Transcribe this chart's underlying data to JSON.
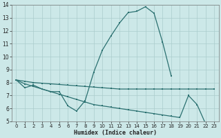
{
  "xlabel": "Humidex (Indice chaleur)",
  "bg_color": "#cce8e8",
  "grid_color": "#aacccc",
  "line_color": "#2a7070",
  "x": [
    0,
    1,
    2,
    3,
    4,
    5,
    6,
    7,
    8,
    9,
    10,
    11,
    12,
    13,
    14,
    15,
    16,
    17,
    18,
    19,
    20,
    21,
    22,
    23
  ],
  "line1": [
    8.2,
    7.6,
    7.8,
    7.5,
    7.3,
    7.3,
    6.2,
    5.8,
    6.6,
    8.8,
    10.5,
    11.6,
    12.6,
    13.4,
    13.5,
    13.85,
    13.35,
    11.1,
    8.5,
    null,
    null,
    null,
    null,
    null
  ],
  "line2": [
    8.2,
    8.1,
    8.0,
    7.95,
    7.9,
    7.85,
    7.8,
    7.75,
    7.7,
    7.65,
    7.6,
    7.55,
    7.5,
    7.5,
    7.5,
    7.5,
    7.5,
    7.5,
    7.5,
    7.5,
    7.5,
    7.5,
    7.5,
    7.5
  ],
  "line3": [
    8.2,
    7.9,
    7.7,
    7.5,
    7.3,
    7.1,
    6.9,
    6.7,
    6.5,
    6.3,
    6.2,
    6.1,
    6.0,
    5.9,
    5.8,
    5.7,
    5.6,
    5.5,
    5.4,
    5.3,
    7.0,
    6.3,
    4.8,
    null
  ],
  "ylim": [
    5,
    14
  ],
  "xlim": [
    -0.5,
    23.5
  ],
  "yticks": [
    5,
    6,
    7,
    8,
    9,
    10,
    11,
    12,
    13,
    14
  ],
  "xticks": [
    0,
    1,
    2,
    3,
    4,
    5,
    6,
    7,
    8,
    9,
    10,
    11,
    12,
    13,
    14,
    15,
    16,
    17,
    18,
    19,
    20,
    21,
    22,
    23
  ]
}
